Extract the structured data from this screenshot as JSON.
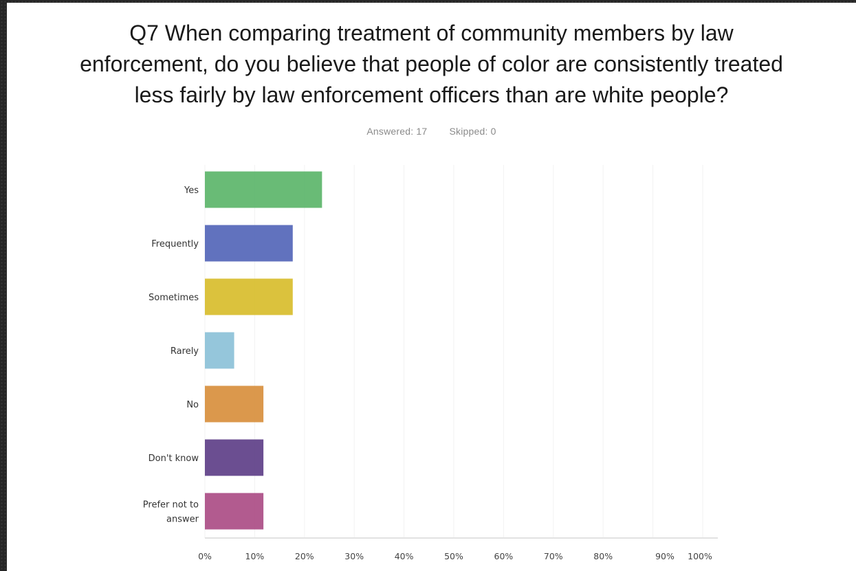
{
  "question": {
    "lines": [
      "Q7 When comparing treatment of community members by law",
      "enforcement, do you believe that people of color are consistently treated",
      "less fairly by law enforcement officers than are white people?"
    ],
    "answered": "Answered: 17",
    "skipped": "Skipped: 0"
  },
  "chart_data": {
    "type": "bar",
    "orientation": "horizontal",
    "categories": [
      "Yes",
      "Frequently",
      "Sometimes",
      "Rarely",
      "No",
      "Don't know",
      "Prefer not to answer"
    ],
    "category_lines": [
      [
        "Yes"
      ],
      [
        "Frequently"
      ],
      [
        "Sometimes"
      ],
      [
        "Rarely"
      ],
      [
        "No"
      ],
      [
        "Don't know"
      ],
      [
        "Prefer not to",
        "answer"
      ]
    ],
    "values": [
      23.53,
      17.65,
      17.65,
      5.88,
      11.76,
      11.76,
      11.76
    ],
    "colors": [
      "#5cb56a",
      "#5466b8",
      "#d8bd2c",
      "#8cc1d8",
      "#d88f3d",
      "#5e3f88",
      "#ab4d85"
    ],
    "xlim": [
      0,
      100
    ],
    "x_ticks": [
      "0%",
      "10%",
      "20%",
      "30%",
      "40%",
      "50%",
      "60%",
      "70%",
      "80%",
      "90%",
      "100%"
    ],
    "grid": true
  }
}
